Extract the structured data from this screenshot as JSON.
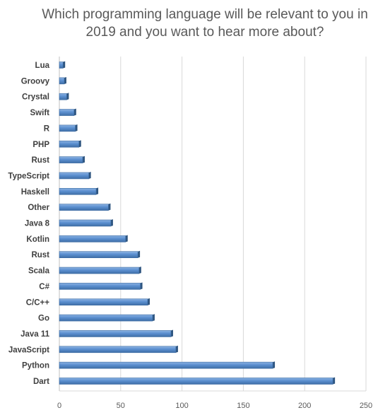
{
  "chart_data": {
    "type": "bar",
    "orientation": "horizontal",
    "title": "Which programming language will be relevant to you in 2019 and you want to hear more about?",
    "categories": [
      "Lua",
      "Groovy",
      "Crystal",
      "Swift",
      "R",
      "PHP",
      "Rust",
      "TypeScript",
      "Haskell",
      "Other",
      "Java 8",
      "Kotlin",
      "Rust",
      "Scala",
      "C#",
      "C/C++",
      "Go",
      "Java 11",
      "JavaScript",
      "Python",
      "Dart"
    ],
    "values": [
      3,
      4,
      6,
      12,
      13,
      16,
      19,
      24,
      30,
      40,
      42,
      54,
      64,
      65,
      66,
      72,
      76,
      91,
      95,
      174,
      223
    ],
    "xlim": [
      0,
      250
    ],
    "xticks": [
      0,
      50,
      100,
      150,
      200,
      250
    ],
    "grid": true,
    "bar_color": "#5b8fd0"
  }
}
